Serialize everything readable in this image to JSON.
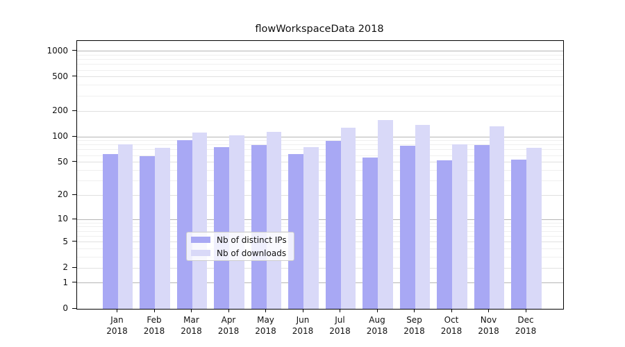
{
  "title": "flowWorkspaceData 2018",
  "chart_data": {
    "type": "bar",
    "title": "flowWorkspaceData 2018",
    "categories": [
      "Jan",
      "Feb",
      "Mar",
      "Apr",
      "May",
      "Jun",
      "Jul",
      "Aug",
      "Sep",
      "Oct",
      "Nov",
      "Dec"
    ],
    "year_label": "2018",
    "series": [
      {
        "name": "Nb of distinct IPs",
        "color": "#a8a8f4",
        "values": [
          63,
          59,
          91,
          75,
          80,
          63,
          89,
          57,
          78,
          53,
          80,
          54
        ]
      },
      {
        "name": "Nb of downloads",
        "color": "#d9d9f8",
        "values": [
          81,
          74,
          112,
          103,
          114,
          75,
          128,
          156,
          138,
          81,
          133,
          74
        ]
      }
    ],
    "xlabel": "",
    "ylabel": "",
    "yscale": "log1p",
    "ylim": [
      0,
      1318
    ],
    "yticks": [
      0,
      1,
      2,
      5,
      10,
      20,
      50,
      100,
      200,
      500,
      1000
    ],
    "grid": {
      "on": true,
      "major": [
        1,
        10,
        100,
        1000
      ],
      "mid": [
        2,
        5,
        20,
        50,
        200,
        500
      ],
      "minor": [
        3,
        4,
        6,
        7,
        8,
        9,
        30,
        40,
        60,
        70,
        80,
        90,
        300,
        400,
        600,
        700,
        800,
        900
      ]
    },
    "legend_position": "lower center"
  }
}
